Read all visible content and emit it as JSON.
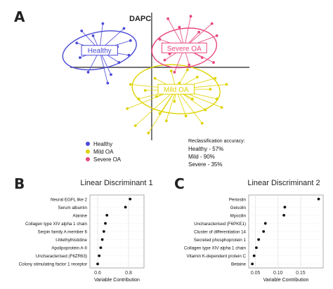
{
  "panels": {
    "a_label": "A",
    "b_label": "B",
    "c_label": "C"
  },
  "chart_data": [
    {
      "type": "scatter",
      "title": "DAPC",
      "xlabel": "",
      "ylabel": "",
      "xlim": [
        -5,
        6
      ],
      "ylim": [
        -6,
        4.5
      ],
      "groups": [
        {
          "name": "Healthy",
          "color": "#4a4ad8",
          "label_box": "Healthy",
          "centroid": [
            -3.2,
            1.4
          ],
          "ellipse": {
            "rx": 2.3,
            "ry": 1.5,
            "angle": -12
          },
          "points": [
            [
              -4.3,
              3.0
            ],
            [
              -4.6,
              2.0
            ],
            [
              -4.4,
              0.8
            ],
            [
              -3.9,
              -0.4
            ],
            [
              -2.5,
              -0.6
            ],
            [
              -2.1,
              1.7
            ],
            [
              -1.3,
              2.2
            ],
            [
              -1.7,
              3.2
            ],
            [
              -3.0,
              3.6
            ],
            [
              -2.7,
              -1.3
            ],
            [
              -2.0,
              0.4
            ],
            [
              -3.6,
              2.6
            ],
            [
              -1.4,
              1.0
            ],
            [
              -4.0,
              1.3
            ]
          ]
        },
        {
          "name": "Mild OA",
          "color": "#e0d300",
          "label_box": "Mild OA",
          "centroid": [
            1.5,
            -1.8
          ],
          "ellipse": {
            "rx": 2.7,
            "ry": 2.0,
            "angle": 5
          },
          "points": [
            [
              -1.0,
              -4.8
            ],
            [
              -0.2,
              -5.4
            ],
            [
              0.5,
              -3.8
            ],
            [
              -0.8,
              -2.6
            ],
            [
              -1.3,
              -1.4
            ],
            [
              0.2,
              -0.9
            ],
            [
              1.2,
              -0.3
            ],
            [
              2.8,
              -0.8
            ],
            [
              3.6,
              -1.8
            ],
            [
              4.0,
              -2.6
            ],
            [
              3.3,
              -3.5
            ],
            [
              2.1,
              -4.0
            ],
            [
              0.9,
              -4.4
            ],
            [
              4.6,
              -1.4
            ],
            [
              2.5,
              -2.6
            ],
            [
              -0.4,
              -1.9
            ],
            [
              1.4,
              -2.8
            ],
            [
              3.1,
              -4.6
            ],
            [
              1.7,
              -1.3
            ],
            [
              0.3,
              -2.4
            ],
            [
              2.2,
              -0.2
            ],
            [
              -1.5,
              -3.4
            ],
            [
              4.3,
              -3.3
            ],
            [
              3.9,
              -0.9
            ]
          ]
        },
        {
          "name": "Severe OA",
          "color": "#e8457e",
          "label_box": "Severe OA",
          "centroid": [
            2.0,
            1.6
          ],
          "ellipse": {
            "rx": 2.0,
            "ry": 1.6,
            "angle": -8
          },
          "points": [
            [
              1.0,
              4.0
            ],
            [
              2.4,
              4.2
            ],
            [
              3.7,
              3.6
            ],
            [
              4.0,
              2.6
            ],
            [
              3.8,
              0.4
            ],
            [
              0.8,
              0.6
            ],
            [
              1.4,
              -0.4
            ],
            [
              0.5,
              2.3
            ],
            [
              2.9,
              2.9
            ],
            [
              3.1,
              0.8
            ],
            [
              1.7,
              3.3
            ],
            [
              2.3,
              0.2
            ],
            [
              1.1,
              1.1
            ]
          ]
        }
      ],
      "legend": {
        "placement": "bottom-left",
        "entries": [
          "Healthy",
          "Mild OA",
          "Severe OA"
        ]
      },
      "annotation": {
        "title": "Reclassification accuracy:",
        "lines": [
          "Healthy - 57%",
          "Mild - 90%",
          "Severe - 35%"
        ]
      }
    },
    {
      "type": "scatter",
      "title": "Linear Discriminant 1",
      "xlabel": "Variable Contribution",
      "ylabel": "",
      "xlim": [
        0.55,
        0.9
      ],
      "xticks": [
        "0.6",
        "0.8"
      ],
      "xtick_values": [
        0.6,
        0.8
      ],
      "grid": true,
      "categories": [
        "Neural EGFL like 2",
        "Serum albumin",
        "Alanine",
        "Collagen type XIV alpha 1 chain",
        "Serpin family A member 6",
        "t-Methylhistidine",
        "Apolipoprotein A-II",
        "Uncharacterised (F6ZR63)",
        "Colony stimulating factor 1 receptor"
      ],
      "values": [
        0.81,
        0.78,
        0.66,
        0.65,
        0.64,
        0.63,
        0.62,
        0.61,
        0.6
      ]
    },
    {
      "type": "scatter",
      "title": "Linear Discriminant 2",
      "xlabel": "Variable Contribution",
      "ylabel": "",
      "xlim": [
        0.035,
        0.2
      ],
      "xticks": [
        "0.05",
        "0.10",
        "0.15"
      ],
      "xtick_values": [
        0.05,
        0.1,
        0.15
      ],
      "grid": true,
      "categories": [
        "Periostin",
        "Gelsolin",
        "Myocilin",
        "Uncharacterised (F6PKE1)",
        "Cluster of differentiation 14",
        "Secreted phosphoprotein 1",
        "Collagen type XIV alpha 1 chain",
        "Vitamin K-dependent protein C",
        "Betaine"
      ],
      "values": [
        0.19,
        0.115,
        0.113,
        0.072,
        0.068,
        0.057,
        0.052,
        0.047,
        0.043
      ]
    }
  ]
}
